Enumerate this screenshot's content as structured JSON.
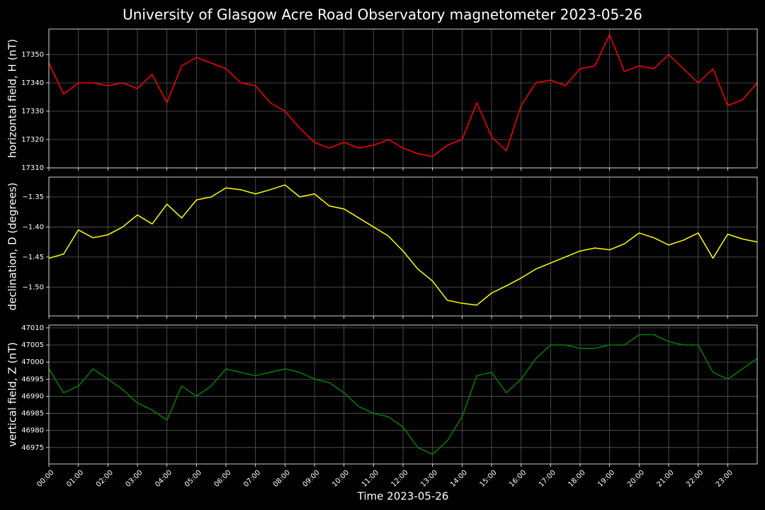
{
  "title": "University of Glasgow Acre Road Observatory magnetometer 2023-05-26",
  "chart_data": [
    {
      "type": "line",
      "ylabel": "horizontal field, H (nT)",
      "color": "#ff0000",
      "grid": true,
      "x": [
        0,
        0.5,
        1,
        1.5,
        2,
        2.5,
        3,
        3.5,
        4,
        4.5,
        5,
        5.5,
        6,
        6.5,
        7,
        7.5,
        8,
        8.5,
        9,
        9.5,
        10,
        10.5,
        11,
        11.5,
        12,
        12.5,
        13,
        13.5,
        14,
        14.5,
        15,
        15.5,
        16,
        16.5,
        17,
        17.5,
        18,
        18.5,
        19,
        19.5,
        20,
        20.5,
        21,
        21.5,
        22,
        22.5,
        23,
        23.5,
        24
      ],
      "values": [
        17347,
        17336,
        17340,
        17340,
        17339,
        17340,
        17338,
        17343,
        17333,
        17346,
        17349,
        17347,
        17345,
        17340,
        17339,
        17333,
        17330,
        17324,
        17319,
        17317,
        17319,
        17317,
        17318,
        17320,
        17317,
        17315,
        17314,
        17318,
        17320,
        17333,
        17321,
        17316,
        17332,
        17340,
        17341,
        17339,
        17345,
        17346,
        17357,
        17344,
        17346,
        17345,
        17350,
        17345,
        17340,
        17345,
        17332,
        17334,
        17340
      ],
      "xlim": [
        0,
        24
      ],
      "ylim": [
        17310,
        17359
      ],
      "yticks": [
        17310,
        17320,
        17330,
        17340,
        17350
      ]
    },
    {
      "type": "line",
      "ylabel": "declination, D (degrees)",
      "color": "#ffff00",
      "grid": true,
      "x": [
        0,
        0.5,
        1,
        1.5,
        2,
        2.5,
        3,
        3.5,
        4,
        4.5,
        5,
        5.5,
        6,
        6.5,
        7,
        7.5,
        8,
        8.5,
        9,
        9.5,
        10,
        10.5,
        11,
        11.5,
        12,
        12.5,
        13,
        13.5,
        14,
        14.5,
        15,
        15.5,
        16,
        16.5,
        17,
        17.5,
        18,
        18.5,
        19,
        19.5,
        20,
        20.5,
        21,
        21.5,
        22,
        22.5,
        23,
        23.5,
        24
      ],
      "values": [
        -1.452,
        -1.445,
        -1.405,
        -1.418,
        -1.413,
        -1.4,
        -1.38,
        -1.395,
        -1.362,
        -1.385,
        -1.355,
        -1.35,
        -1.335,
        -1.338,
        -1.345,
        -1.338,
        -1.33,
        -1.35,
        -1.345,
        -1.365,
        -1.37,
        -1.385,
        -1.4,
        -1.415,
        -1.44,
        -1.47,
        -1.49,
        -1.522,
        -1.527,
        -1.53,
        -1.51,
        -1.498,
        -1.485,
        -1.47,
        -1.46,
        -1.45,
        -1.44,
        -1.435,
        -1.438,
        -1.428,
        -1.41,
        -1.418,
        -1.43,
        -1.422,
        -1.41,
        -1.452,
        -1.412,
        -1.42,
        -1.425
      ],
      "xlim": [
        0,
        24
      ],
      "ylim": [
        -1.548,
        -1.317
      ],
      "yticks": [
        {
          "value": -1.5,
          "label": "−1.50"
        },
        {
          "value": -1.45,
          "label": "−1.45"
        },
        {
          "value": -1.4,
          "label": "−1.40"
        },
        {
          "value": -1.35,
          "label": "−1.35"
        }
      ]
    },
    {
      "type": "line",
      "ylabel": "vertical field, Z (nT)",
      "xlabel": "Time 2023-05-26",
      "color": "#008000",
      "grid": true,
      "x": [
        0,
        0.5,
        1,
        1.5,
        2,
        2.5,
        3,
        3.5,
        4,
        4.5,
        5,
        5.5,
        6,
        6.5,
        7,
        7.5,
        8,
        8.5,
        9,
        9.5,
        10,
        10.5,
        11,
        11.5,
        12,
        12.5,
        13,
        13.5,
        14,
        14.5,
        15,
        15.5,
        16,
        16.5,
        17,
        17.5,
        18,
        18.5,
        19,
        19.5,
        20,
        20.5,
        21,
        21.5,
        22,
        22.5,
        23,
        23.5,
        24
      ],
      "values": [
        46998,
        46991,
        46993,
        46998,
        46995,
        46992,
        46988,
        46986,
        46983,
        46993,
        46990,
        46993,
        46998,
        46997,
        46996,
        46997,
        46998,
        46997,
        46995,
        46994,
        46991,
        46987,
        46985,
        46984,
        46981,
        46975,
        46973,
        46977,
        46984,
        46996,
        46997,
        46991,
        46995,
        47001,
        47005,
        47005,
        47004,
        47004,
        47005,
        47005,
        47008,
        47008,
        47006,
        47005,
        47005,
        46997,
        46995,
        46998,
        47001
      ],
      "xlim": [
        0,
        24
      ],
      "ylim": [
        46970.2,
        47010.8
      ],
      "yticks": [
        46975,
        46980,
        46985,
        46990,
        46995,
        47000,
        47005,
        47010
      ],
      "xticks": [
        {
          "value": 0,
          "label": "00:00"
        },
        {
          "value": 1,
          "label": "01:00"
        },
        {
          "value": 2,
          "label": "02:00"
        },
        {
          "value": 3,
          "label": "03:00"
        },
        {
          "value": 4,
          "label": "04:00"
        },
        {
          "value": 5,
          "label": "05:00"
        },
        {
          "value": 6,
          "label": "06:00"
        },
        {
          "value": 7,
          "label": "07:00"
        },
        {
          "value": 8,
          "label": "08:00"
        },
        {
          "value": 9,
          "label": "09:00"
        },
        {
          "value": 10,
          "label": "10:00"
        },
        {
          "value": 11,
          "label": "11:00"
        },
        {
          "value": 12,
          "label": "12:00"
        },
        {
          "value": 13,
          "label": "13:00"
        },
        {
          "value": 14,
          "label": "14:00"
        },
        {
          "value": 15,
          "label": "15:00"
        },
        {
          "value": 16,
          "label": "16:00"
        },
        {
          "value": 17,
          "label": "17:00"
        },
        {
          "value": 18,
          "label": "18:00"
        },
        {
          "value": 19,
          "label": "19:00"
        },
        {
          "value": 20,
          "label": "20:00"
        },
        {
          "value": 21,
          "label": "21:00"
        },
        {
          "value": 22,
          "label": "22:00"
        },
        {
          "value": 23,
          "label": "23:00"
        }
      ]
    }
  ]
}
